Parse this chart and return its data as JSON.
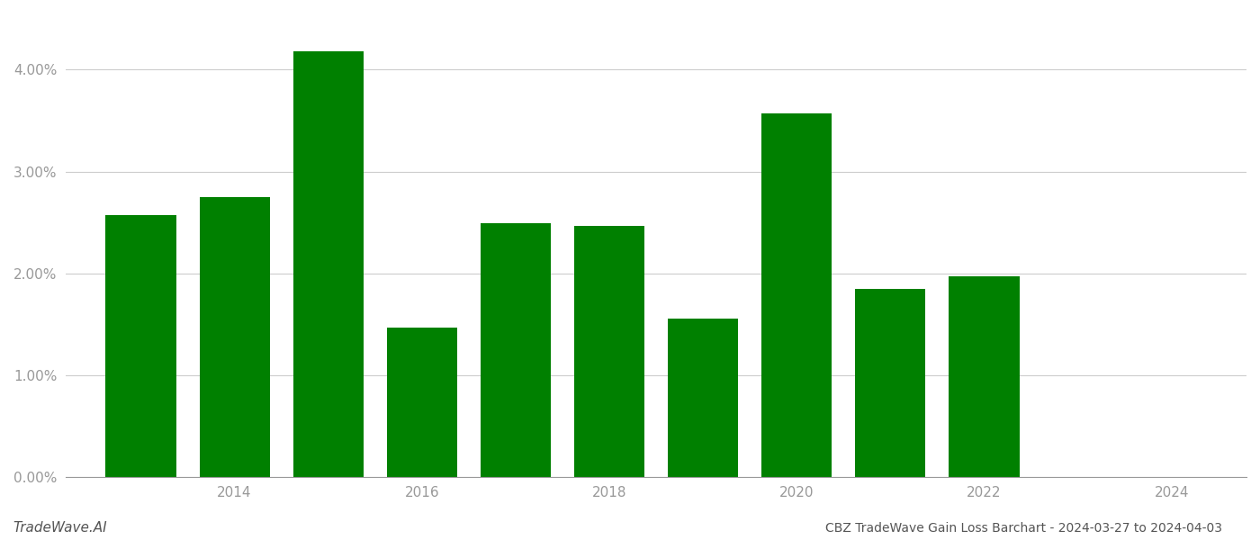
{
  "years": [
    2013,
    2014,
    2015,
    2016,
    2017,
    2018,
    2019,
    2020,
    2021,
    2022,
    2023
  ],
  "values": [
    0.0257,
    0.0275,
    0.0418,
    0.0147,
    0.0249,
    0.0247,
    0.0156,
    0.0357,
    0.0185,
    0.0197,
    0.0
  ],
  "bar_color": "#008000",
  "background_color": "#ffffff",
  "title": "CBZ TradeWave Gain Loss Barchart - 2024-03-27 to 2024-04-03",
  "watermark": "TradeWave.AI",
  "ylim": [
    0,
    0.0455
  ],
  "yticks": [
    0.0,
    0.01,
    0.02,
    0.03,
    0.04
  ],
  "ytick_labels": [
    "0.00%",
    "1.00%",
    "2.00%",
    "3.00%",
    "4.00%"
  ],
  "xtick_positions": [
    2014,
    2016,
    2018,
    2020,
    2022,
    2024
  ],
  "xtick_labels": [
    "2014",
    "2016",
    "2018",
    "2020",
    "2022",
    "2024"
  ],
  "grid_color": "#cccccc",
  "axis_color": "#999999",
  "title_color": "#555555",
  "watermark_color": "#555555",
  "bar_width": 0.75,
  "xlim": [
    2012.2,
    2024.8
  ]
}
